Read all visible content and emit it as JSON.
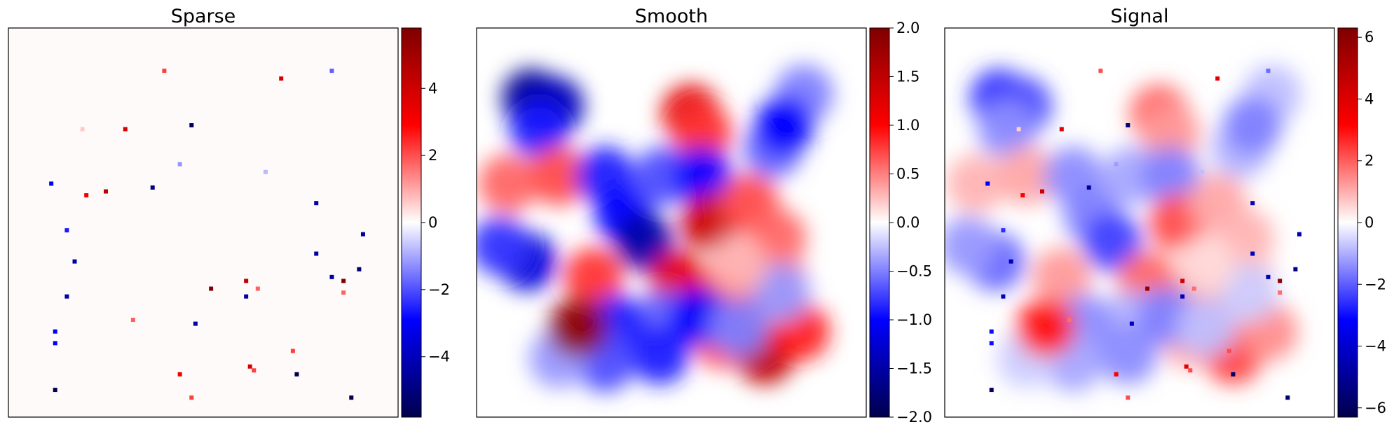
{
  "chart_data": [
    {
      "type": "heatmap",
      "title": "Sparse",
      "colormap": "seismic",
      "background": "#fffafa",
      "colorbar": {
        "range": [
          -5.8,
          5.8
        ],
        "ticks": [
          -4,
          -2,
          0,
          2,
          4
        ],
        "tick_labels": [
          "−4",
          "−2",
          "0",
          "2",
          "4"
        ]
      },
      "points": [
        {
          "x": 0.4,
          "y": 0.89,
          "v": 2.2
        },
        {
          "x": 0.7,
          "y": 0.87,
          "v": 3.8
        },
        {
          "x": 0.83,
          "y": 0.89,
          "v": -1.8
        },
        {
          "x": 0.19,
          "y": 0.74,
          "v": 0.6
        },
        {
          "x": 0.3,
          "y": 0.74,
          "v": 3.8
        },
        {
          "x": 0.47,
          "y": 0.75,
          "v": -5.6
        },
        {
          "x": 0.44,
          "y": 0.65,
          "v": -1.2
        },
        {
          "x": 0.66,
          "y": 0.63,
          "v": -0.8
        },
        {
          "x": 0.11,
          "y": 0.6,
          "v": -3.2
        },
        {
          "x": 0.2,
          "y": 0.57,
          "v": 3.2
        },
        {
          "x": 0.25,
          "y": 0.58,
          "v": 4.4
        },
        {
          "x": 0.37,
          "y": 0.59,
          "v": -4.8
        },
        {
          "x": 0.79,
          "y": 0.55,
          "v": -4.4
        },
        {
          "x": 0.15,
          "y": 0.48,
          "v": -2.6
        },
        {
          "x": 0.91,
          "y": 0.47,
          "v": -4.4
        },
        {
          "x": 0.17,
          "y": 0.4,
          "v": -4.4
        },
        {
          "x": 0.79,
          "y": 0.42,
          "v": -4.4
        },
        {
          "x": 0.9,
          "y": 0.38,
          "v": -5.2
        },
        {
          "x": 0.83,
          "y": 0.36,
          "v": -4.4
        },
        {
          "x": 0.86,
          "y": 0.35,
          "v": 5.8
        },
        {
          "x": 0.52,
          "y": 0.33,
          "v": 5.8
        },
        {
          "x": 0.61,
          "y": 0.35,
          "v": 4.4
        },
        {
          "x": 0.64,
          "y": 0.33,
          "v": 1.8
        },
        {
          "x": 0.86,
          "y": 0.32,
          "v": 1.8
        },
        {
          "x": 0.15,
          "y": 0.31,
          "v": -4.4
        },
        {
          "x": 0.61,
          "y": 0.31,
          "v": -4.4
        },
        {
          "x": 0.32,
          "y": 0.25,
          "v": 1.8
        },
        {
          "x": 0.12,
          "y": 0.22,
          "v": -3.0
        },
        {
          "x": 0.48,
          "y": 0.24,
          "v": -4.4
        },
        {
          "x": 0.12,
          "y": 0.19,
          "v": -3.0
        },
        {
          "x": 0.73,
          "y": 0.17,
          "v": 2.2
        },
        {
          "x": 0.44,
          "y": 0.11,
          "v": 3.2
        },
        {
          "x": 0.62,
          "y": 0.13,
          "v": 3.8
        },
        {
          "x": 0.63,
          "y": 0.12,
          "v": 2.2
        },
        {
          "x": 0.74,
          "y": 0.11,
          "v": -5.8
        },
        {
          "x": 0.12,
          "y": 0.07,
          "v": -5.8
        },
        {
          "x": 0.47,
          "y": 0.05,
          "v": 2.2
        },
        {
          "x": 0.88,
          "y": 0.05,
          "v": -5.8
        }
      ]
    },
    {
      "type": "heatmap",
      "title": "Smooth",
      "colormap": "seismic",
      "background": "#ffffff",
      "colorbar": {
        "range": [
          -2.0,
          2.0
        ],
        "ticks": [
          -2.0,
          -1.5,
          -1.0,
          -0.5,
          0.0,
          0.5,
          1.0,
          1.5,
          2.0
        ],
        "tick_labels": [
          "−2.0",
          "−1.5",
          "−1.0",
          "−0.5",
          "0.0",
          "0.5",
          "1.0",
          "1.5",
          "2.0"
        ]
      },
      "blobs": [
        {
          "x": 0.14,
          "y": 0.82,
          "v": -1.6
        },
        {
          "x": 0.2,
          "y": 0.8,
          "v": -1.4
        },
        {
          "x": 0.16,
          "y": 0.74,
          "v": -0.9
        },
        {
          "x": 0.55,
          "y": 0.78,
          "v": 1.2
        },
        {
          "x": 0.58,
          "y": 0.73,
          "v": 0.8
        },
        {
          "x": 0.84,
          "y": 0.83,
          "v": -0.5
        },
        {
          "x": 0.08,
          "y": 0.6,
          "v": 0.6
        },
        {
          "x": 0.21,
          "y": 0.62,
          "v": 0.7
        },
        {
          "x": 0.33,
          "y": 0.62,
          "v": -0.9
        },
        {
          "x": 0.38,
          "y": 0.52,
          "v": -1.0
        },
        {
          "x": 0.43,
          "y": 0.45,
          "v": -1.5
        },
        {
          "x": 0.48,
          "y": 0.62,
          "v": -0.7
        },
        {
          "x": 0.58,
          "y": 0.62,
          "v": -1.0
        },
        {
          "x": 0.76,
          "y": 0.69,
          "v": -0.6
        },
        {
          "x": 0.6,
          "y": 0.5,
          "v": 1.4
        },
        {
          "x": 0.7,
          "y": 0.55,
          "v": 0.7
        },
        {
          "x": 0.77,
          "y": 0.46,
          "v": 0.6
        },
        {
          "x": 0.52,
          "y": 0.35,
          "v": 1.2
        },
        {
          "x": 0.63,
          "y": 0.32,
          "v": 1.0
        },
        {
          "x": 0.7,
          "y": 0.31,
          "v": 0.8
        },
        {
          "x": 0.77,
          "y": 0.36,
          "v": 0.5
        },
        {
          "x": 0.3,
          "y": 0.36,
          "v": 0.8
        },
        {
          "x": 0.13,
          "y": 0.4,
          "v": -1.2
        },
        {
          "x": 0.06,
          "y": 0.44,
          "v": -0.8
        },
        {
          "x": 0.48,
          "y": 0.25,
          "v": -0.6
        },
        {
          "x": 0.36,
          "y": 0.24,
          "v": -0.9
        },
        {
          "x": 0.33,
          "y": 0.14,
          "v": -0.7
        },
        {
          "x": 0.47,
          "y": 0.16,
          "v": -0.9
        },
        {
          "x": 0.21,
          "y": 0.15,
          "v": -0.4
        },
        {
          "x": 0.63,
          "y": 0.2,
          "v": 0.7
        },
        {
          "x": 0.74,
          "y": 0.16,
          "v": 1.5
        },
        {
          "x": 0.83,
          "y": 0.22,
          "v": 0.9
        },
        {
          "x": 0.26,
          "y": 0.23,
          "v": 1.9
        },
        {
          "x": 0.78,
          "y": 0.32,
          "v": -0.4
        },
        {
          "x": 0.79,
          "y": 0.75,
          "v": -1.0
        },
        {
          "x": 0.57,
          "y": 0.26,
          "v": -1.0
        },
        {
          "x": 0.67,
          "y": 0.23,
          "v": -0.5
        },
        {
          "x": 0.67,
          "y": 0.39,
          "v": 0.3
        }
      ]
    },
    {
      "type": "heatmap",
      "title": "Signal",
      "colormap": "seismic",
      "background": "#ffffff",
      "composition": "Sparse + Smooth",
      "colorbar": {
        "range": [
          -6.3,
          6.3
        ],
        "ticks": [
          -6,
          -4,
          -2,
          0,
          2,
          4,
          6
        ],
        "tick_labels": [
          "−6",
          "−4",
          "−2",
          "0",
          "2",
          "4",
          "6"
        ]
      }
    }
  ]
}
